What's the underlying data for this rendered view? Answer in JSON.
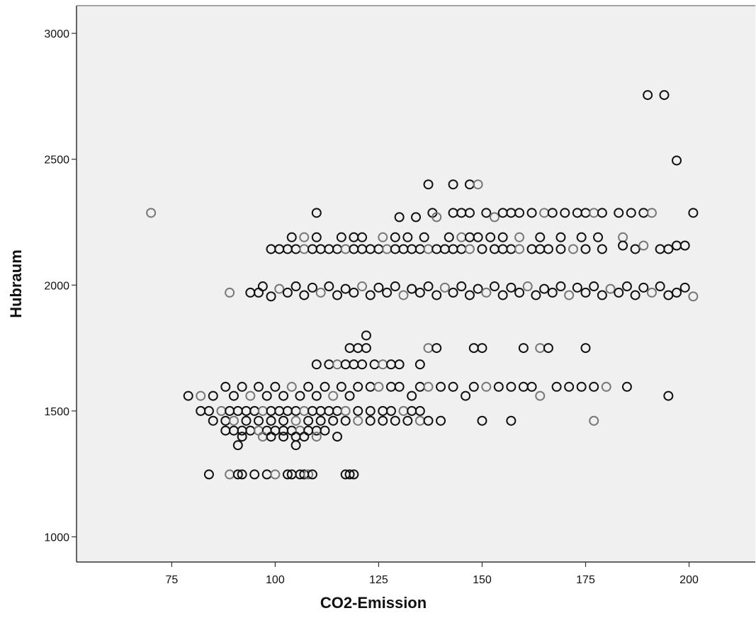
{
  "chart_data": {
    "type": "scatter",
    "title": "",
    "xlabel": "CO2-Emission",
    "ylabel": "Hubraum",
    "xlim": [
      52,
      216
    ],
    "ylim": [
      900,
      3110
    ],
    "x_ticks": [
      75,
      100,
      125,
      150,
      175,
      200
    ],
    "y_ticks": [
      1000,
      1500,
      2000,
      2500,
      3000
    ],
    "grid": false,
    "legend": "none",
    "colors": {
      "plot_background": "#f0f0f0",
      "frame": "#333333",
      "marker": "#111111",
      "marker_light": "#777777"
    },
    "series": [
      {
        "values": [
          [
            70,
            2287
          ],
          [
            110,
            2287
          ],
          [
            130,
            2270
          ],
          [
            134,
            2270
          ],
          [
            138,
            2287
          ],
          [
            139,
            2270
          ],
          [
            143,
            2287
          ],
          [
            145,
            2287
          ],
          [
            147,
            2287
          ],
          [
            151,
            2287
          ],
          [
            153,
            2270
          ],
          [
            155,
            2287
          ],
          [
            157,
            2287
          ],
          [
            159,
            2287
          ],
          [
            162,
            2287
          ],
          [
            165,
            2287
          ],
          [
            167,
            2287
          ],
          [
            170,
            2287
          ],
          [
            173,
            2287
          ],
          [
            175,
            2287
          ],
          [
            177,
            2287
          ],
          [
            179,
            2287
          ],
          [
            183,
            2287
          ],
          [
            186,
            2287
          ],
          [
            189,
            2287
          ],
          [
            191,
            2287
          ],
          [
            201,
            2287
          ],
          [
            137,
            2400
          ],
          [
            143,
            2400
          ],
          [
            147,
            2400
          ],
          [
            149,
            2400
          ],
          [
            190,
            2755
          ],
          [
            194,
            2755
          ],
          [
            197,
            2495
          ],
          [
            104,
            2190
          ],
          [
            107,
            2190
          ],
          [
            110,
            2190
          ],
          [
            116,
            2190
          ],
          [
            119,
            2190
          ],
          [
            121,
            2190
          ],
          [
            126,
            2190
          ],
          [
            129,
            2190
          ],
          [
            132,
            2190
          ],
          [
            136,
            2190
          ],
          [
            142,
            2190
          ],
          [
            145,
            2190
          ],
          [
            147,
            2190
          ],
          [
            149,
            2190
          ],
          [
            152,
            2190
          ],
          [
            155,
            2190
          ],
          [
            159,
            2190
          ],
          [
            164,
            2190
          ],
          [
            169,
            2190
          ],
          [
            174,
            2190
          ],
          [
            178,
            2190
          ],
          [
            184,
            2190
          ],
          [
            99,
            2143
          ],
          [
            101,
            2143
          ],
          [
            103,
            2143
          ],
          [
            105,
            2143
          ],
          [
            107,
            2143
          ],
          [
            109,
            2143
          ],
          [
            111,
            2143
          ],
          [
            113,
            2143
          ],
          [
            115,
            2143
          ],
          [
            117,
            2143
          ],
          [
            119,
            2143
          ],
          [
            121,
            2143
          ],
          [
            123,
            2143
          ],
          [
            125,
            2143
          ],
          [
            127,
            2143
          ],
          [
            129,
            2143
          ],
          [
            131,
            2143
          ],
          [
            133,
            2143
          ],
          [
            135,
            2143
          ],
          [
            137,
            2143
          ],
          [
            139,
            2143
          ],
          [
            141,
            2143
          ],
          [
            143,
            2143
          ],
          [
            145,
            2143
          ],
          [
            147,
            2143
          ],
          [
            150,
            2143
          ],
          [
            153,
            2143
          ],
          [
            155,
            2143
          ],
          [
            157,
            2143
          ],
          [
            159,
            2143
          ],
          [
            162,
            2143
          ],
          [
            164,
            2143
          ],
          [
            166,
            2143
          ],
          [
            169,
            2143
          ],
          [
            172,
            2143
          ],
          [
            175,
            2143
          ],
          [
            179,
            2143
          ],
          [
            184,
            2157
          ],
          [
            187,
            2143
          ],
          [
            189,
            2157
          ],
          [
            193,
            2143
          ],
          [
            195,
            2143
          ],
          [
            197,
            2157
          ],
          [
            199,
            2157
          ],
          [
            89,
            1970
          ],
          [
            94,
            1970
          ],
          [
            96,
            1970
          ],
          [
            97,
            1995
          ],
          [
            99,
            1955
          ],
          [
            101,
            1985
          ],
          [
            103,
            1970
          ],
          [
            105,
            1995
          ],
          [
            107,
            1960
          ],
          [
            109,
            1990
          ],
          [
            111,
            1970
          ],
          [
            113,
            1995
          ],
          [
            115,
            1960
          ],
          [
            117,
            1985
          ],
          [
            119,
            1970
          ],
          [
            121,
            1995
          ],
          [
            123,
            1960
          ],
          [
            125,
            1990
          ],
          [
            127,
            1970
          ],
          [
            129,
            1995
          ],
          [
            131,
            1960
          ],
          [
            133,
            1985
          ],
          [
            135,
            1970
          ],
          [
            137,
            1995
          ],
          [
            139,
            1960
          ],
          [
            141,
            1990
          ],
          [
            143,
            1970
          ],
          [
            145,
            1995
          ],
          [
            147,
            1960
          ],
          [
            149,
            1985
          ],
          [
            151,
            1970
          ],
          [
            153,
            1995
          ],
          [
            155,
            1960
          ],
          [
            157,
            1990
          ],
          [
            159,
            1970
          ],
          [
            161,
            1995
          ],
          [
            163,
            1960
          ],
          [
            165,
            1985
          ],
          [
            167,
            1970
          ],
          [
            169,
            1995
          ],
          [
            171,
            1960
          ],
          [
            173,
            1990
          ],
          [
            175,
            1970
          ],
          [
            177,
            1995
          ],
          [
            179,
            1960
          ],
          [
            181,
            1985
          ],
          [
            183,
            1970
          ],
          [
            185,
            1995
          ],
          [
            187,
            1960
          ],
          [
            189,
            1990
          ],
          [
            191,
            1970
          ],
          [
            193,
            1995
          ],
          [
            195,
            1960
          ],
          [
            197,
            1970
          ],
          [
            199,
            1990
          ],
          [
            201,
            1955
          ],
          [
            122,
            1800
          ],
          [
            118,
            1750
          ],
          [
            120,
            1750
          ],
          [
            122,
            1750
          ],
          [
            137,
            1750
          ],
          [
            139,
            1750
          ],
          [
            148,
            1750
          ],
          [
            150,
            1750
          ],
          [
            160,
            1750
          ],
          [
            164,
            1750
          ],
          [
            166,
            1750
          ],
          [
            175,
            1750
          ],
          [
            110,
            1685
          ],
          [
            113,
            1685
          ],
          [
            115,
            1685
          ],
          [
            117,
            1685
          ],
          [
            119,
            1685
          ],
          [
            121,
            1685
          ],
          [
            124,
            1685
          ],
          [
            126,
            1685
          ],
          [
            128,
            1685
          ],
          [
            130,
            1685
          ],
          [
            135,
            1685
          ],
          [
            79,
            1560
          ],
          [
            82,
            1560
          ],
          [
            85,
            1560
          ],
          [
            88,
            1596
          ],
          [
            90,
            1560
          ],
          [
            92,
            1596
          ],
          [
            94,
            1560
          ],
          [
            96,
            1596
          ],
          [
            98,
            1560
          ],
          [
            100,
            1596
          ],
          [
            102,
            1560
          ],
          [
            104,
            1596
          ],
          [
            106,
            1560
          ],
          [
            108,
            1596
          ],
          [
            110,
            1560
          ],
          [
            112,
            1596
          ],
          [
            114,
            1560
          ],
          [
            116,
            1596
          ],
          [
            118,
            1560
          ],
          [
            120,
            1596
          ],
          [
            123,
            1596
          ],
          [
            125,
            1596
          ],
          [
            128,
            1596
          ],
          [
            130,
            1596
          ],
          [
            133,
            1560
          ],
          [
            135,
            1596
          ],
          [
            137,
            1596
          ],
          [
            140,
            1596
          ],
          [
            143,
            1596
          ],
          [
            146,
            1560
          ],
          [
            148,
            1596
          ],
          [
            151,
            1596
          ],
          [
            154,
            1596
          ],
          [
            157,
            1596
          ],
          [
            160,
            1596
          ],
          [
            162,
            1596
          ],
          [
            164,
            1560
          ],
          [
            168,
            1596
          ],
          [
            171,
            1596
          ],
          [
            174,
            1596
          ],
          [
            177,
            1596
          ],
          [
            180,
            1596
          ],
          [
            185,
            1596
          ],
          [
            195,
            1560
          ],
          [
            82,
            1500
          ],
          [
            84,
            1500
          ],
          [
            87,
            1500
          ],
          [
            89,
            1500
          ],
          [
            91,
            1500
          ],
          [
            93,
            1500
          ],
          [
            95,
            1500
          ],
          [
            97,
            1500
          ],
          [
            99,
            1500
          ],
          [
            101,
            1500
          ],
          [
            103,
            1500
          ],
          [
            105,
            1500
          ],
          [
            107,
            1500
          ],
          [
            109,
            1500
          ],
          [
            111,
            1500
          ],
          [
            113,
            1500
          ],
          [
            115,
            1500
          ],
          [
            117,
            1500
          ],
          [
            120,
            1500
          ],
          [
            123,
            1500
          ],
          [
            126,
            1500
          ],
          [
            128,
            1500
          ],
          [
            131,
            1500
          ],
          [
            133,
            1500
          ],
          [
            135,
            1500
          ],
          [
            85,
            1461
          ],
          [
            88,
            1461
          ],
          [
            90,
            1461
          ],
          [
            93,
            1461
          ],
          [
            96,
            1461
          ],
          [
            99,
            1461
          ],
          [
            102,
            1461
          ],
          [
            105,
            1461
          ],
          [
            108,
            1461
          ],
          [
            111,
            1461
          ],
          [
            114,
            1461
          ],
          [
            117,
            1461
          ],
          [
            120,
            1461
          ],
          [
            123,
            1461
          ],
          [
            126,
            1461
          ],
          [
            129,
            1461
          ],
          [
            132,
            1461
          ],
          [
            135,
            1461
          ],
          [
            137,
            1461
          ],
          [
            140,
            1461
          ],
          [
            150,
            1461
          ],
          [
            157,
            1461
          ],
          [
            177,
            1461
          ],
          [
            88,
            1422
          ],
          [
            90,
            1422
          ],
          [
            92,
            1422
          ],
          [
            94,
            1422
          ],
          [
            96,
            1422
          ],
          [
            98,
            1422
          ],
          [
            100,
            1422
          ],
          [
            102,
            1422
          ],
          [
            104,
            1422
          ],
          [
            106,
            1422
          ],
          [
            108,
            1422
          ],
          [
            110,
            1422
          ],
          [
            112,
            1422
          ],
          [
            92,
            1398
          ],
          [
            97,
            1398
          ],
          [
            99,
            1398
          ],
          [
            102,
            1398
          ],
          [
            105,
            1398
          ],
          [
            107,
            1398
          ],
          [
            110,
            1398
          ],
          [
            115,
            1398
          ],
          [
            91,
            1364
          ],
          [
            105,
            1364
          ],
          [
            84,
            1248
          ],
          [
            89,
            1248
          ],
          [
            91,
            1248
          ],
          [
            92,
            1248
          ],
          [
            95,
            1248
          ],
          [
            98,
            1248
          ],
          [
            100,
            1248
          ],
          [
            103,
            1248
          ],
          [
            104,
            1248
          ],
          [
            106,
            1248
          ],
          [
            107,
            1248
          ],
          [
            108,
            1248
          ],
          [
            109,
            1248
          ],
          [
            117,
            1248
          ],
          [
            118,
            1248
          ],
          [
            119,
            1248
          ]
        ]
      }
    ]
  }
}
